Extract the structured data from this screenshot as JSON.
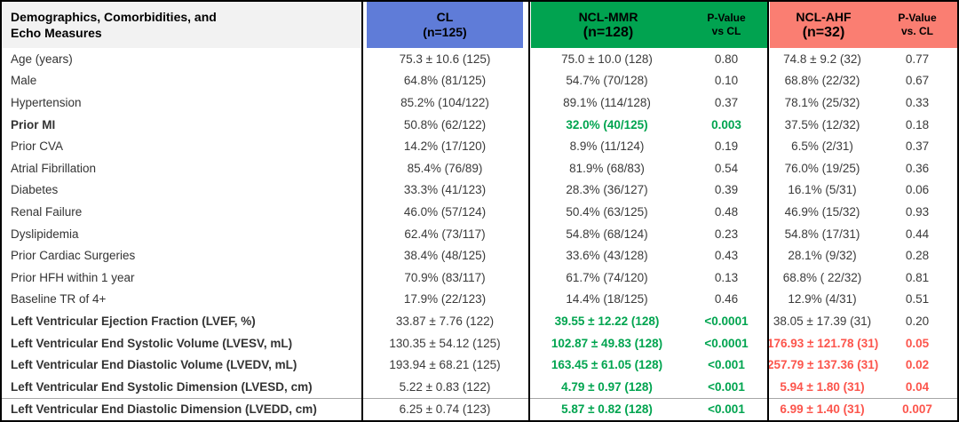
{
  "colors": {
    "cl_header_bg": "#5F7CD8",
    "mmr_header_bg": "#01A350",
    "ahf_header_bg": "#FA7E72",
    "green_text": "#00A44F",
    "red_text": "#FC554C",
    "label_header_bg": "#F2F2F2"
  },
  "table": {
    "header": {
      "title_lines": [
        "Demographics, Comorbidities, and",
        "Echo Measures"
      ],
      "groups": {
        "cl": {
          "name": "CL",
          "n": "(n=125)"
        },
        "ncl_mmr": {
          "name": "NCL-MMR",
          "n": "(n=128)",
          "pvalue_lines": [
            "P-Value",
            "vs CL"
          ]
        },
        "ncl_ahf": {
          "name": "NCL-AHF",
          "n": "(n=32)",
          "pvalue_lines": [
            "P-Value",
            "vs. CL"
          ]
        }
      }
    },
    "rows": [
      {
        "label": "Age (years)",
        "bold": false,
        "cl": "75.3 ± 10.6 (125)",
        "mmr": "75.0 ± 10.0 (128)",
        "mmr_c": "",
        "p1": "0.80",
        "p1_c": "",
        "ahf": "74.8 ± 9.2 (32)",
        "ahf_c": "",
        "p2": "0.77",
        "p2_c": ""
      },
      {
        "label": "Male",
        "bold": false,
        "cl": "64.8% (81/125)",
        "mmr": "54.7% (70/128)",
        "mmr_c": "",
        "p1": "0.10",
        "p1_c": "",
        "ahf": "68.8% (22/32)",
        "ahf_c": "",
        "p2": "0.67",
        "p2_c": ""
      },
      {
        "label": "Hypertension",
        "bold": false,
        "cl": "85.2% (104/122)",
        "mmr": "89.1% (114/128)",
        "mmr_c": "",
        "p1": "0.37",
        "p1_c": "",
        "ahf": "78.1% (25/32)",
        "ahf_c": "",
        "p2": "0.33",
        "p2_c": ""
      },
      {
        "label": "Prior MI",
        "bold": true,
        "cl": "50.8% (62/122)",
        "mmr": "32.0% (40/125)",
        "mmr_c": "green",
        "p1": "0.003",
        "p1_c": "green",
        "ahf": "37.5% (12/32)",
        "ahf_c": "",
        "p2": "0.18",
        "p2_c": ""
      },
      {
        "label": "Prior CVA",
        "bold": false,
        "cl": "14.2% (17/120)",
        "mmr": "8.9% (11/124)",
        "mmr_c": "",
        "p1": "0.19",
        "p1_c": "",
        "ahf": "6.5% (2/31)",
        "ahf_c": "",
        "p2": "0.37",
        "p2_c": ""
      },
      {
        "label": "Atrial Fibrillation",
        "bold": false,
        "cl": "85.4% (76/89)",
        "mmr": "81.9% (68/83)",
        "mmr_c": "",
        "p1": "0.54",
        "p1_c": "",
        "ahf": "76.0% (19/25)",
        "ahf_c": "",
        "p2": "0.36",
        "p2_c": ""
      },
      {
        "label": "Diabetes",
        "bold": false,
        "cl": "33.3% (41/123)",
        "mmr": "28.3% (36/127)",
        "mmr_c": "",
        "p1": "0.39",
        "p1_c": "",
        "ahf": "16.1% (5/31)",
        "ahf_c": "",
        "p2": "0.06",
        "p2_c": ""
      },
      {
        "label": "Renal Failure",
        "bold": false,
        "cl": "46.0% (57/124)",
        "mmr": "50.4% (63/125)",
        "mmr_c": "",
        "p1": "0.48",
        "p1_c": "",
        "ahf": "46.9% (15/32)",
        "ahf_c": "",
        "p2": "0.93",
        "p2_c": ""
      },
      {
        "label": "Dyslipidemia",
        "bold": false,
        "cl": "62.4% (73/117)",
        "mmr": "54.8% (68/124)",
        "mmr_c": "",
        "p1": "0.23",
        "p1_c": "",
        "ahf": "54.8% (17/31)",
        "ahf_c": "",
        "p2": "0.44",
        "p2_c": ""
      },
      {
        "label": "Prior Cardiac Surgeries",
        "bold": false,
        "cl": "38.4% (48/125)",
        "mmr": "33.6% (43/128)",
        "mmr_c": "",
        "p1": "0.43",
        "p1_c": "",
        "ahf": "28.1% (9/32)",
        "ahf_c": "",
        "p2": "0.28",
        "p2_c": ""
      },
      {
        "label": "Prior HFH within 1 year",
        "bold": false,
        "cl": "70.9% (83/117)",
        "mmr": "61.7% (74/120)",
        "mmr_c": "",
        "p1": "0.13",
        "p1_c": "",
        "ahf": "68.8% ( 22/32)",
        "ahf_c": "",
        "p2": "0.81",
        "p2_c": ""
      },
      {
        "label": "Baseline TR of 4+",
        "bold": false,
        "cl": "17.9% (22/123)",
        "mmr": "14.4% (18/125)",
        "mmr_c": "",
        "p1": "0.46",
        "p1_c": "",
        "ahf": "12.9% (4/31)",
        "ahf_c": "",
        "p2": "0.51",
        "p2_c": ""
      },
      {
        "label": "Left Ventricular Ejection Fraction (LVEF, %)",
        "bold": true,
        "cl": "33.87 ± 7.76 (122)",
        "mmr": "39.55 ± 12.22 (128)",
        "mmr_c": "green",
        "p1": "<0.0001",
        "p1_c": "green",
        "ahf": "38.05 ± 17.39 (31)",
        "ahf_c": "",
        "p2": "0.20",
        "p2_c": ""
      },
      {
        "label": "Left Ventricular End Systolic Volume (LVESV, mL)",
        "bold": true,
        "cl": "130.35 ± 54.12 (125)",
        "mmr": "102.87 ± 49.83 (128)",
        "mmr_c": "green",
        "p1": "<0.0001",
        "p1_c": "green",
        "ahf": "176.93 ± 121.78 (31)",
        "ahf_c": "red",
        "p2": "0.05",
        "p2_c": "red"
      },
      {
        "label": "Left Ventricular End Diastolic Volume (LVEDV, mL)",
        "bold": true,
        "cl": "193.94 ± 68.21 (125)",
        "mmr": "163.45 ± 61.05 (128)",
        "mmr_c": "green",
        "p1": "<0.001",
        "p1_c": "green",
        "ahf": "257.79 ± 137.36 (31)",
        "ahf_c": "red",
        "p2": "0.02",
        "p2_c": "red"
      },
      {
        "label": "Left Ventricular End Systolic Dimension (LVESD, cm)",
        "bold": true,
        "cl": "5.22 ± 0.83 (122)",
        "mmr": "4.79 ± 0.97 (128)",
        "mmr_c": "green",
        "p1": "<0.001",
        "p1_c": "green",
        "ahf": "5.94 ± 1.80 (31)",
        "ahf_c": "red",
        "p2": "0.04",
        "p2_c": "red"
      },
      {
        "label": "Left Ventricular End Diastolic Dimension (LVEDD, cm)",
        "bold": true,
        "cl": "6.25 ± 0.74 (123)",
        "mmr": "5.87 ± 0.82 (128)",
        "mmr_c": "green",
        "p1": "<0.001",
        "p1_c": "green",
        "ahf": "6.99 ± 1.40 (31)",
        "ahf_c": "red",
        "p2": "0.007",
        "p2_c": "red"
      }
    ]
  }
}
